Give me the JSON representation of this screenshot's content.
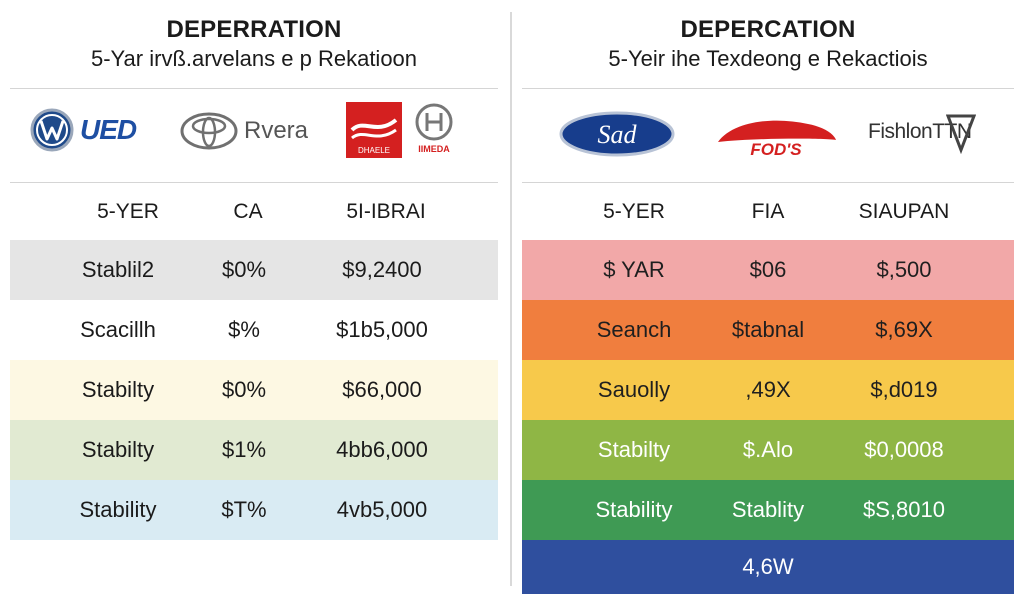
{
  "left": {
    "title": "DEPERRATION",
    "subtitle": "5-Yar irvß.arvelans e p Rekatioon",
    "logos": {
      "vw_text": "UED",
      "toyota_text": "Rvera",
      "badge_text": "DHAELE",
      "badge_sub": "IIMEDA"
    },
    "headers": [
      "5-YER",
      "CA",
      "5I-IBRAI"
    ],
    "rows": [
      {
        "cells": [
          "Stablil2",
          "$0%",
          "$9,2400"
        ],
        "color": "#e5e5e5"
      },
      {
        "cells": [
          "Scacillh",
          "$%",
          "$1b5,000"
        ],
        "color": "#ffffff"
      },
      {
        "cells": [
          "Stabilty",
          "$0%",
          "$66,000"
        ],
        "color": "#fdf8e3"
      },
      {
        "cells": [
          "Stabilty",
          "$1%",
          "4bb6,000"
        ],
        "color": "#e1ead2"
      },
      {
        "cells": [
          "Stability",
          "$T%",
          "4vb5,000"
        ],
        "color": "#d9ebf3"
      }
    ]
  },
  "right": {
    "title": "DEPERCATION",
    "subtitle": "5-Yeir ihe Texdeong e Rekactiois",
    "logos": {
      "ford_text": "Sad",
      "car_text": "FOD'S",
      "brand_text": "FishlonTTN"
    },
    "headers": [
      "5-YER",
      "FIA",
      "SIAUPAN"
    ],
    "rows": [
      {
        "cells": [
          "$ YAR",
          "$06",
          "$,500"
        ],
        "color": "#f2a8a8",
        "tone": "mid"
      },
      {
        "cells": [
          "Seanch",
          "$tabnal",
          "$,69X"
        ],
        "color": "#f07e3e",
        "tone": "mid"
      },
      {
        "cells": [
          "Sauolly",
          ",49X",
          "$,d019"
        ],
        "color": "#f7c94b",
        "tone": "mid"
      },
      {
        "cells": [
          "Stabilty",
          "$.Alo",
          "$0,0008"
        ],
        "color": "#8fb645",
        "tone": "dark"
      },
      {
        "cells": [
          "Stability",
          "Stablity",
          "$S,8010"
        ],
        "color": "#3f9a54",
        "tone": "dark"
      }
    ],
    "footer": {
      "cells": [
        "",
        "4,6W",
        ""
      ],
      "color": "#2f4f9e"
    }
  }
}
